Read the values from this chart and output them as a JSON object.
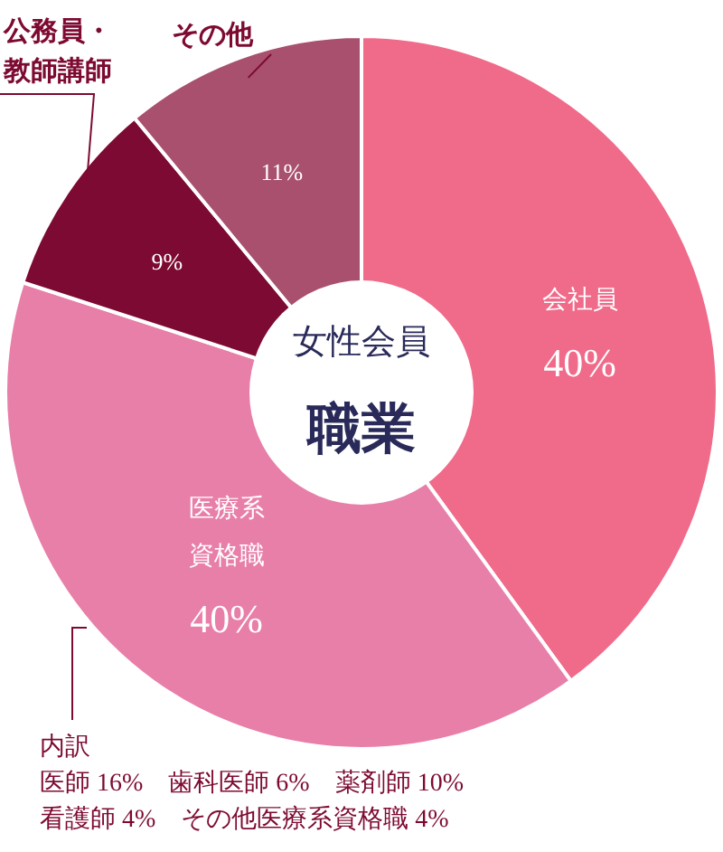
{
  "chart_data": {
    "type": "donut",
    "title": "女性会員",
    "subtitle": "職業",
    "categories": [
      "会社員",
      "医療系資格職",
      "公務員・教師講師",
      "その他"
    ],
    "values": [
      40,
      40,
      9,
      11
    ],
    "colors": [
      "#f06a8a",
      "#e87fa8",
      "#7d0a32",
      "#a8506e"
    ],
    "value_labels": [
      "40%",
      "40%",
      "9%",
      "11%"
    ],
    "annotations": [
      "内訳",
      "医師 16%　歯科医師 6%　薬剤師 10%",
      "看護師 4%　その他医療系資格職 4%"
    ]
  }
}
